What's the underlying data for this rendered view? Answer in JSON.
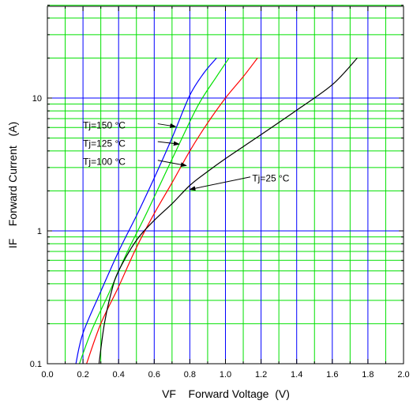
{
  "chart_data": {
    "type": "line",
    "xlabel": "VF    Forward Voltage  (V)",
    "ylabel": "IF    Forward Current   (A)",
    "xlim": [
      0,
      2.0
    ],
    "ylim": [
      0.1,
      50
    ],
    "yscale": "log",
    "xticks": [
      0.0,
      0.2,
      0.4,
      0.6,
      0.8,
      1.0,
      1.2,
      1.4,
      1.6,
      1.8,
      2.0
    ],
    "xtick_labels": [
      "0.0",
      "0.2",
      "0.4",
      "0.6",
      "0.8",
      "1.0",
      "1.2",
      "1.4",
      "1.6",
      "1.8",
      "2.0"
    ],
    "yticks": [
      0.1,
      1,
      10
    ],
    "ytick_labels": [
      "0.1",
      "1",
      "10"
    ],
    "grid": true,
    "grid_colors": {
      "minor": "#00e000",
      "major": "#0000ff"
    },
    "series": [
      {
        "name": "Tj=150 °C",
        "color": "#0000ff",
        "points": [
          [
            0.16,
            0.1
          ],
          [
            0.2,
            0.17
          ],
          [
            0.3,
            0.35
          ],
          [
            0.4,
            0.7
          ],
          [
            0.5,
            1.3
          ],
          [
            0.6,
            2.5
          ],
          [
            0.7,
            5.0
          ],
          [
            0.8,
            10.5
          ],
          [
            0.88,
            15.5
          ],
          [
            0.95,
            20
          ]
        ]
      },
      {
        "name": "Tj=125 °C",
        "color": "#00e000",
        "points": [
          [
            0.18,
            0.1
          ],
          [
            0.25,
            0.18
          ],
          [
            0.35,
            0.35
          ],
          [
            0.45,
            0.7
          ],
          [
            0.55,
            1.3
          ],
          [
            0.65,
            2.5
          ],
          [
            0.75,
            4.8
          ],
          [
            0.85,
            9.0
          ],
          [
            0.95,
            14.5
          ],
          [
            1.02,
            20
          ]
        ]
      },
      {
        "name": "Tj=100 °C",
        "color": "#ff0000",
        "points": [
          [
            0.22,
            0.1
          ],
          [
            0.3,
            0.2
          ],
          [
            0.4,
            0.38
          ],
          [
            0.5,
            0.75
          ],
          [
            0.6,
            1.35
          ],
          [
            0.7,
            2.3
          ],
          [
            0.8,
            4.0
          ],
          [
            0.9,
            6.5
          ],
          [
            1.0,
            10.0
          ],
          [
            1.1,
            14.5
          ],
          [
            1.18,
            20
          ]
        ]
      },
      {
        "name": "Tj=25 °C",
        "color": "#000000",
        "points": [
          [
            0.29,
            0.1
          ],
          [
            0.32,
            0.2
          ],
          [
            0.36,
            0.35
          ],
          [
            0.4,
            0.5
          ],
          [
            0.5,
            0.85
          ],
          [
            0.6,
            1.2
          ],
          [
            0.7,
            1.6
          ],
          [
            0.8,
            2.2
          ],
          [
            0.9,
            2.8
          ],
          [
            1.0,
            3.5
          ],
          [
            1.2,
            5.3
          ],
          [
            1.4,
            8.1
          ],
          [
            1.6,
            12.6
          ],
          [
            1.74,
            20
          ]
        ]
      }
    ],
    "annotations": [
      {
        "label": "Tj=150 °C",
        "text": [
          0.2,
          5.9
        ],
        "arrow_from": [
          0.62,
          6.4
        ],
        "arrow_to": [
          0.72,
          6.1
        ]
      },
      {
        "label": "Tj=125 °C",
        "text": [
          0.2,
          4.3
        ],
        "arrow_from": [
          0.62,
          4.7
        ],
        "arrow_to": [
          0.74,
          4.5
        ]
      },
      {
        "label": "Tj=100 °C",
        "text": [
          0.2,
          3.15
        ],
        "arrow_from": [
          0.62,
          3.4
        ],
        "arrow_to": [
          0.78,
          3.1
        ]
      },
      {
        "label": "Tj=25 °C",
        "text": [
          1.15,
          2.35
        ],
        "arrow_from": [
          1.14,
          2.55
        ],
        "arrow_to": [
          0.8,
          2.05
        ]
      }
    ]
  }
}
